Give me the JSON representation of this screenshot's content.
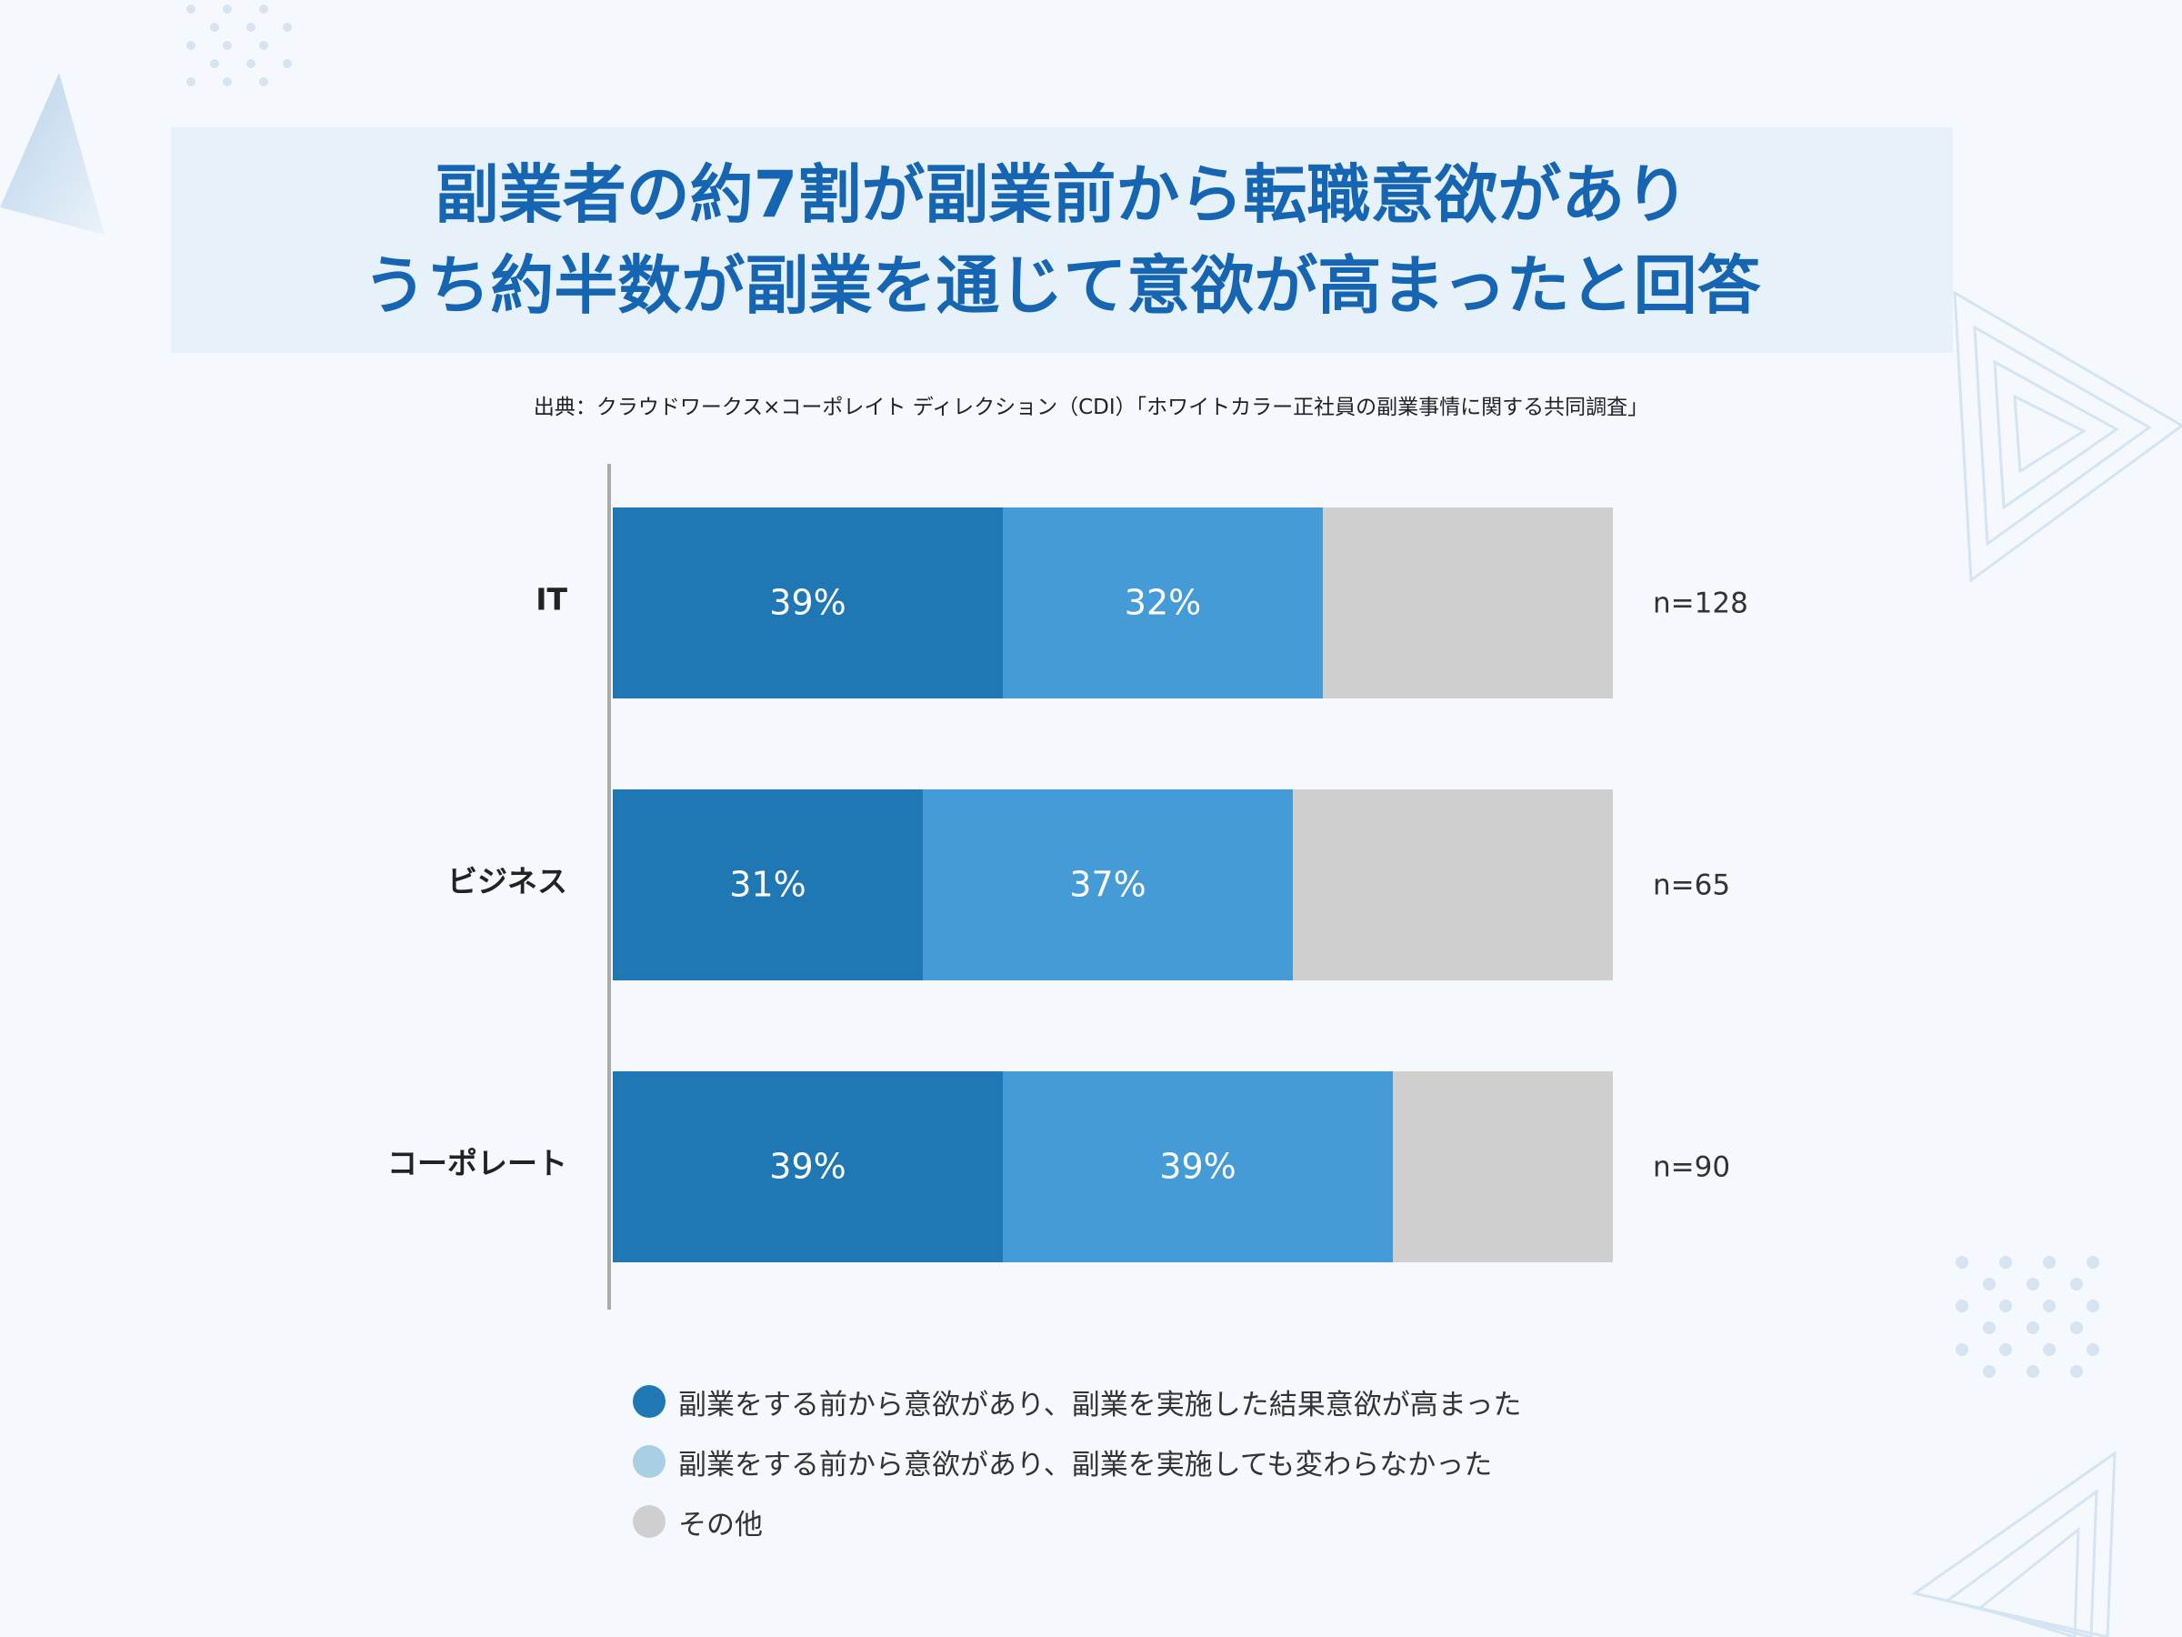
{
  "title": {
    "line1": "副業者の約7割が副業前から転職意欲があり",
    "line2": "うち約半数が副業を通じて意欲が高まったと回答"
  },
  "source": "出典：クラウドワークス×コーポレイト ディレクション（CDI）「ホワイトカラー正社員の副業事情に関する共同調査」",
  "colors": {
    "series1": "#1f77b4",
    "series2": "#459bd6",
    "series3": "#cfcfcf",
    "legend_dot2": "#a9cfe4",
    "title": "#1565b3",
    "banner": "#e6f1fa"
  },
  "chart_data": {
    "type": "bar",
    "orientation": "horizontal",
    "stacked": true,
    "categories": [
      "IT",
      "ビジネス",
      "コーポレート"
    ],
    "series": [
      {
        "name": "副業をする前から意欲があり、副業を実施した結果意欲が高まった",
        "values": [
          39,
          31,
          39
        ],
        "labels": [
          "39%",
          "31%",
          "39%"
        ]
      },
      {
        "name": "副業をする前から意欲があり、副業を実施しても変わらなかった",
        "values": [
          32,
          37,
          39
        ],
        "labels": [
          "32%",
          "37%",
          "39%"
        ]
      },
      {
        "name": "その他",
        "values": [
          29,
          32,
          22
        ]
      }
    ],
    "sample_sizes": [
      "n=128",
      "n=65",
      "n=90"
    ],
    "xlim": [
      0,
      100
    ],
    "grid": false,
    "legend_position": "bottom"
  }
}
